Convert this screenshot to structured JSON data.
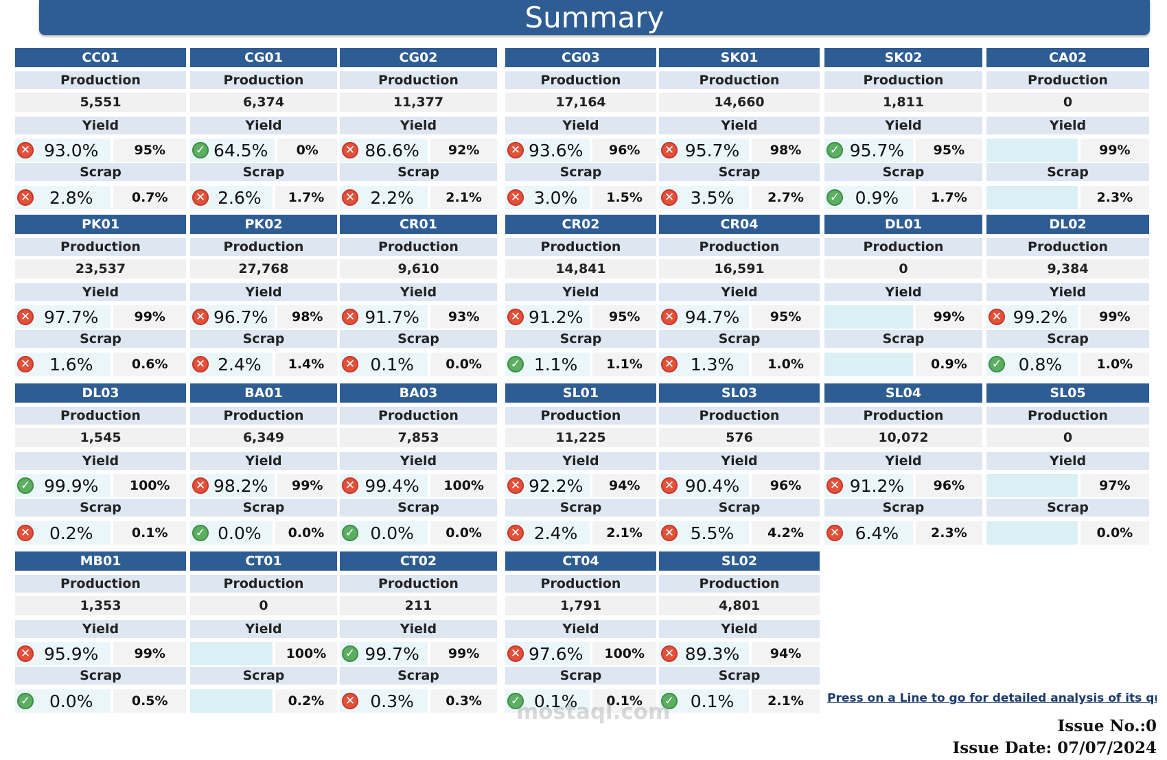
{
  "title": "Summary",
  "labels": {
    "production": "Production",
    "yield": "Yield",
    "scrap": "Scrap"
  },
  "lines": [
    {
      "name": "CC01",
      "production": "5,551",
      "yield": {
        "actual": "93.0%",
        "target": "95%",
        "status": "bad"
      },
      "scrap": {
        "actual": "2.8%",
        "target": "0.7%",
        "status": "bad"
      }
    },
    {
      "name": "CG01",
      "production": "6,374",
      "yield": {
        "actual": "64.5%",
        "target": "0%",
        "status": "good"
      },
      "scrap": {
        "actual": "2.6%",
        "target": "1.7%",
        "status": "bad"
      }
    },
    {
      "name": "CG02",
      "production": "11,377",
      "yield": {
        "actual": "86.6%",
        "target": "92%",
        "status": "bad"
      },
      "scrap": {
        "actual": "2.2%",
        "target": "2.1%",
        "status": "bad"
      }
    },
    {
      "name": "CG03",
      "production": "17,164",
      "yield": {
        "actual": "93.6%",
        "target": "96%",
        "status": "bad"
      },
      "scrap": {
        "actual": "3.0%",
        "target": "1.5%",
        "status": "bad"
      }
    },
    {
      "name": "SK01",
      "production": "14,660",
      "yield": {
        "actual": "95.7%",
        "target": "98%",
        "status": "bad"
      },
      "scrap": {
        "actual": "3.5%",
        "target": "2.7%",
        "status": "bad"
      }
    },
    {
      "name": "SK02",
      "production": "1,811",
      "yield": {
        "actual": "95.7%",
        "target": "95%",
        "status": "good"
      },
      "scrap": {
        "actual": "0.9%",
        "target": "1.7%",
        "status": "good"
      }
    },
    {
      "name": "CA02",
      "production": "0",
      "yield": {
        "actual": "",
        "target": "99%",
        "status": "none"
      },
      "scrap": {
        "actual": "",
        "target": "2.3%",
        "status": "none"
      }
    },
    {
      "name": "PK01",
      "production": "23,537",
      "yield": {
        "actual": "97.7%",
        "target": "99%",
        "status": "bad"
      },
      "scrap": {
        "actual": "1.6%",
        "target": "0.6%",
        "status": "bad"
      }
    },
    {
      "name": "PK02",
      "production": "27,768",
      "yield": {
        "actual": "96.7%",
        "target": "98%",
        "status": "bad"
      },
      "scrap": {
        "actual": "2.4%",
        "target": "1.4%",
        "status": "bad"
      }
    },
    {
      "name": "CR01",
      "production": "9,610",
      "yield": {
        "actual": "91.7%",
        "target": "93%",
        "status": "bad"
      },
      "scrap": {
        "actual": "0.1%",
        "target": "0.0%",
        "status": "bad"
      }
    },
    {
      "name": "CR02",
      "production": "14,841",
      "yield": {
        "actual": "91.2%",
        "target": "95%",
        "status": "bad"
      },
      "scrap": {
        "actual": "1.1%",
        "target": "1.1%",
        "status": "good"
      }
    },
    {
      "name": "CR04",
      "production": "16,591",
      "yield": {
        "actual": "94.7%",
        "target": "95%",
        "status": "bad"
      },
      "scrap": {
        "actual": "1.3%",
        "target": "1.0%",
        "status": "bad"
      }
    },
    {
      "name": "DL01",
      "production": "0",
      "yield": {
        "actual": "",
        "target": "99%",
        "status": "none"
      },
      "scrap": {
        "actual": "",
        "target": "0.9%",
        "status": "none"
      }
    },
    {
      "name": "DL02",
      "production": "9,384",
      "yield": {
        "actual": "99.2%",
        "target": "99%",
        "status": "bad"
      },
      "scrap": {
        "actual": "0.8%",
        "target": "1.0%",
        "status": "good"
      }
    },
    {
      "name": "DL03",
      "production": "1,545",
      "yield": {
        "actual": "99.9%",
        "target": "100%",
        "status": "good"
      },
      "scrap": {
        "actual": "0.2%",
        "target": "0.1%",
        "status": "bad"
      }
    },
    {
      "name": "BA01",
      "production": "6,349",
      "yield": {
        "actual": "98.2%",
        "target": "99%",
        "status": "bad"
      },
      "scrap": {
        "actual": "0.0%",
        "target": "0.0%",
        "status": "good"
      }
    },
    {
      "name": "BA03",
      "production": "7,853",
      "yield": {
        "actual": "99.4%",
        "target": "100%",
        "status": "bad"
      },
      "scrap": {
        "actual": "0.0%",
        "target": "0.0%",
        "status": "good"
      }
    },
    {
      "name": "SL01",
      "production": "11,225",
      "yield": {
        "actual": "92.2%",
        "target": "94%",
        "status": "bad"
      },
      "scrap": {
        "actual": "2.4%",
        "target": "2.1%",
        "status": "bad"
      }
    },
    {
      "name": "SL03",
      "production": "576",
      "yield": {
        "actual": "90.4%",
        "target": "96%",
        "status": "bad"
      },
      "scrap": {
        "actual": "5.5%",
        "target": "4.2%",
        "status": "bad"
      }
    },
    {
      "name": "SL04",
      "production": "10,072",
      "yield": {
        "actual": "91.2%",
        "target": "96%",
        "status": "bad"
      },
      "scrap": {
        "actual": "6.4%",
        "target": "2.3%",
        "status": "bad"
      }
    },
    {
      "name": "SL05",
      "production": "0",
      "yield": {
        "actual": "",
        "target": "97%",
        "status": "none"
      },
      "scrap": {
        "actual": "",
        "target": "0.0%",
        "status": "none"
      }
    },
    {
      "name": "MB01",
      "production": "1,353",
      "yield": {
        "actual": "95.9%",
        "target": "99%",
        "status": "bad"
      },
      "scrap": {
        "actual": "0.0%",
        "target": "0.5%",
        "status": "good"
      }
    },
    {
      "name": "CT01",
      "production": "0",
      "yield": {
        "actual": "",
        "target": "100%",
        "status": "none"
      },
      "scrap": {
        "actual": "",
        "target": "0.2%",
        "status": "none"
      }
    },
    {
      "name": "CT02",
      "production": "211",
      "yield": {
        "actual": "99.7%",
        "target": "99%",
        "status": "good"
      },
      "scrap": {
        "actual": "0.3%",
        "target": "0.3%",
        "status": "bad"
      }
    },
    {
      "name": "CT04",
      "production": "1,791",
      "yield": {
        "actual": "97.6%",
        "target": "100%",
        "status": "bad"
      },
      "scrap": {
        "actual": "0.1%",
        "target": "0.1%",
        "status": "good"
      }
    },
    {
      "name": "SL02",
      "production": "4,801",
      "yield": {
        "actual": "89.3%",
        "target": "94%",
        "status": "bad"
      },
      "scrap": {
        "actual": "0.1%",
        "target": "2.1%",
        "status": "good"
      }
    }
  ],
  "note": "Press on a Line to go for detailed analysis of its quali",
  "issue_no": "Issue No.:0",
  "issue_date": "Issue Date: 07/07/2024",
  "watermark": "mostaql.com",
  "colors": {
    "header": "#2e5d94",
    "label_bg": "#dde6f1",
    "bad": "#e2513a",
    "good": "#5cae62"
  },
  "icons": {
    "bad": "x-circle-icon",
    "good": "check-circle-icon"
  }
}
